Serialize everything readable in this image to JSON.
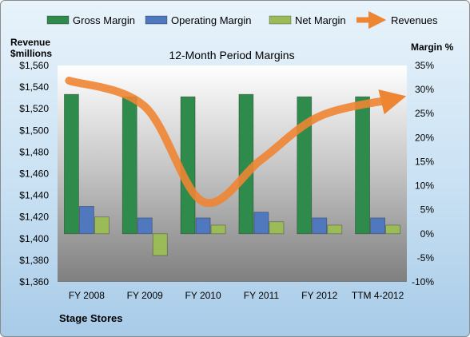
{
  "chart_data": {
    "type": "bar",
    "title": "12-Month Period Margins",
    "company": "Stage Stores",
    "y_left_label_line1": "Revenue",
    "y_left_label_line2": "$millions",
    "y_right_label": "Margin %",
    "categories": [
      "FY 2008",
      "FY 2009",
      "FY 2010",
      "FY 2011",
      "FY 2012",
      "TTM 4-2012"
    ],
    "y_left_ticks": [
      "$1,360",
      "$1,380",
      "$1,400",
      "$1,420",
      "$1,440",
      "$1,460",
      "$1,480",
      "$1,500",
      "$1,520",
      "$1,540",
      "$1,560"
    ],
    "y_right_ticks": [
      "-10%",
      "-5%",
      "0%",
      "5%",
      "10%",
      "15%",
      "20%",
      "25%",
      "30%",
      "35%"
    ],
    "y_left_range": [
      1360,
      1560
    ],
    "y_right_range": [
      -10,
      35
    ],
    "series": [
      {
        "name": "Gross Margin",
        "axis": "right",
        "color": "#2e8b4b",
        "values": [
          29,
          28.5,
          28.5,
          29,
          28.5,
          28.5
        ]
      },
      {
        "name": "Operating Margin",
        "axis": "right",
        "color": "#4f78bf",
        "values": [
          5.7,
          3.3,
          3.3,
          4.5,
          3.3,
          3.3
        ]
      },
      {
        "name": "Net Margin",
        "axis": "right",
        "color": "#9bbb59",
        "values": [
          3.5,
          -4.5,
          1.8,
          2.5,
          1.8,
          1.8
        ]
      },
      {
        "name": "Revenues",
        "axis": "left",
        "type": "line",
        "color": "#ee8533",
        "values": [
          1546,
          1522,
          1434,
          1473,
          1513,
          1529
        ]
      }
    ],
    "legend_position": "top",
    "grid": false
  }
}
